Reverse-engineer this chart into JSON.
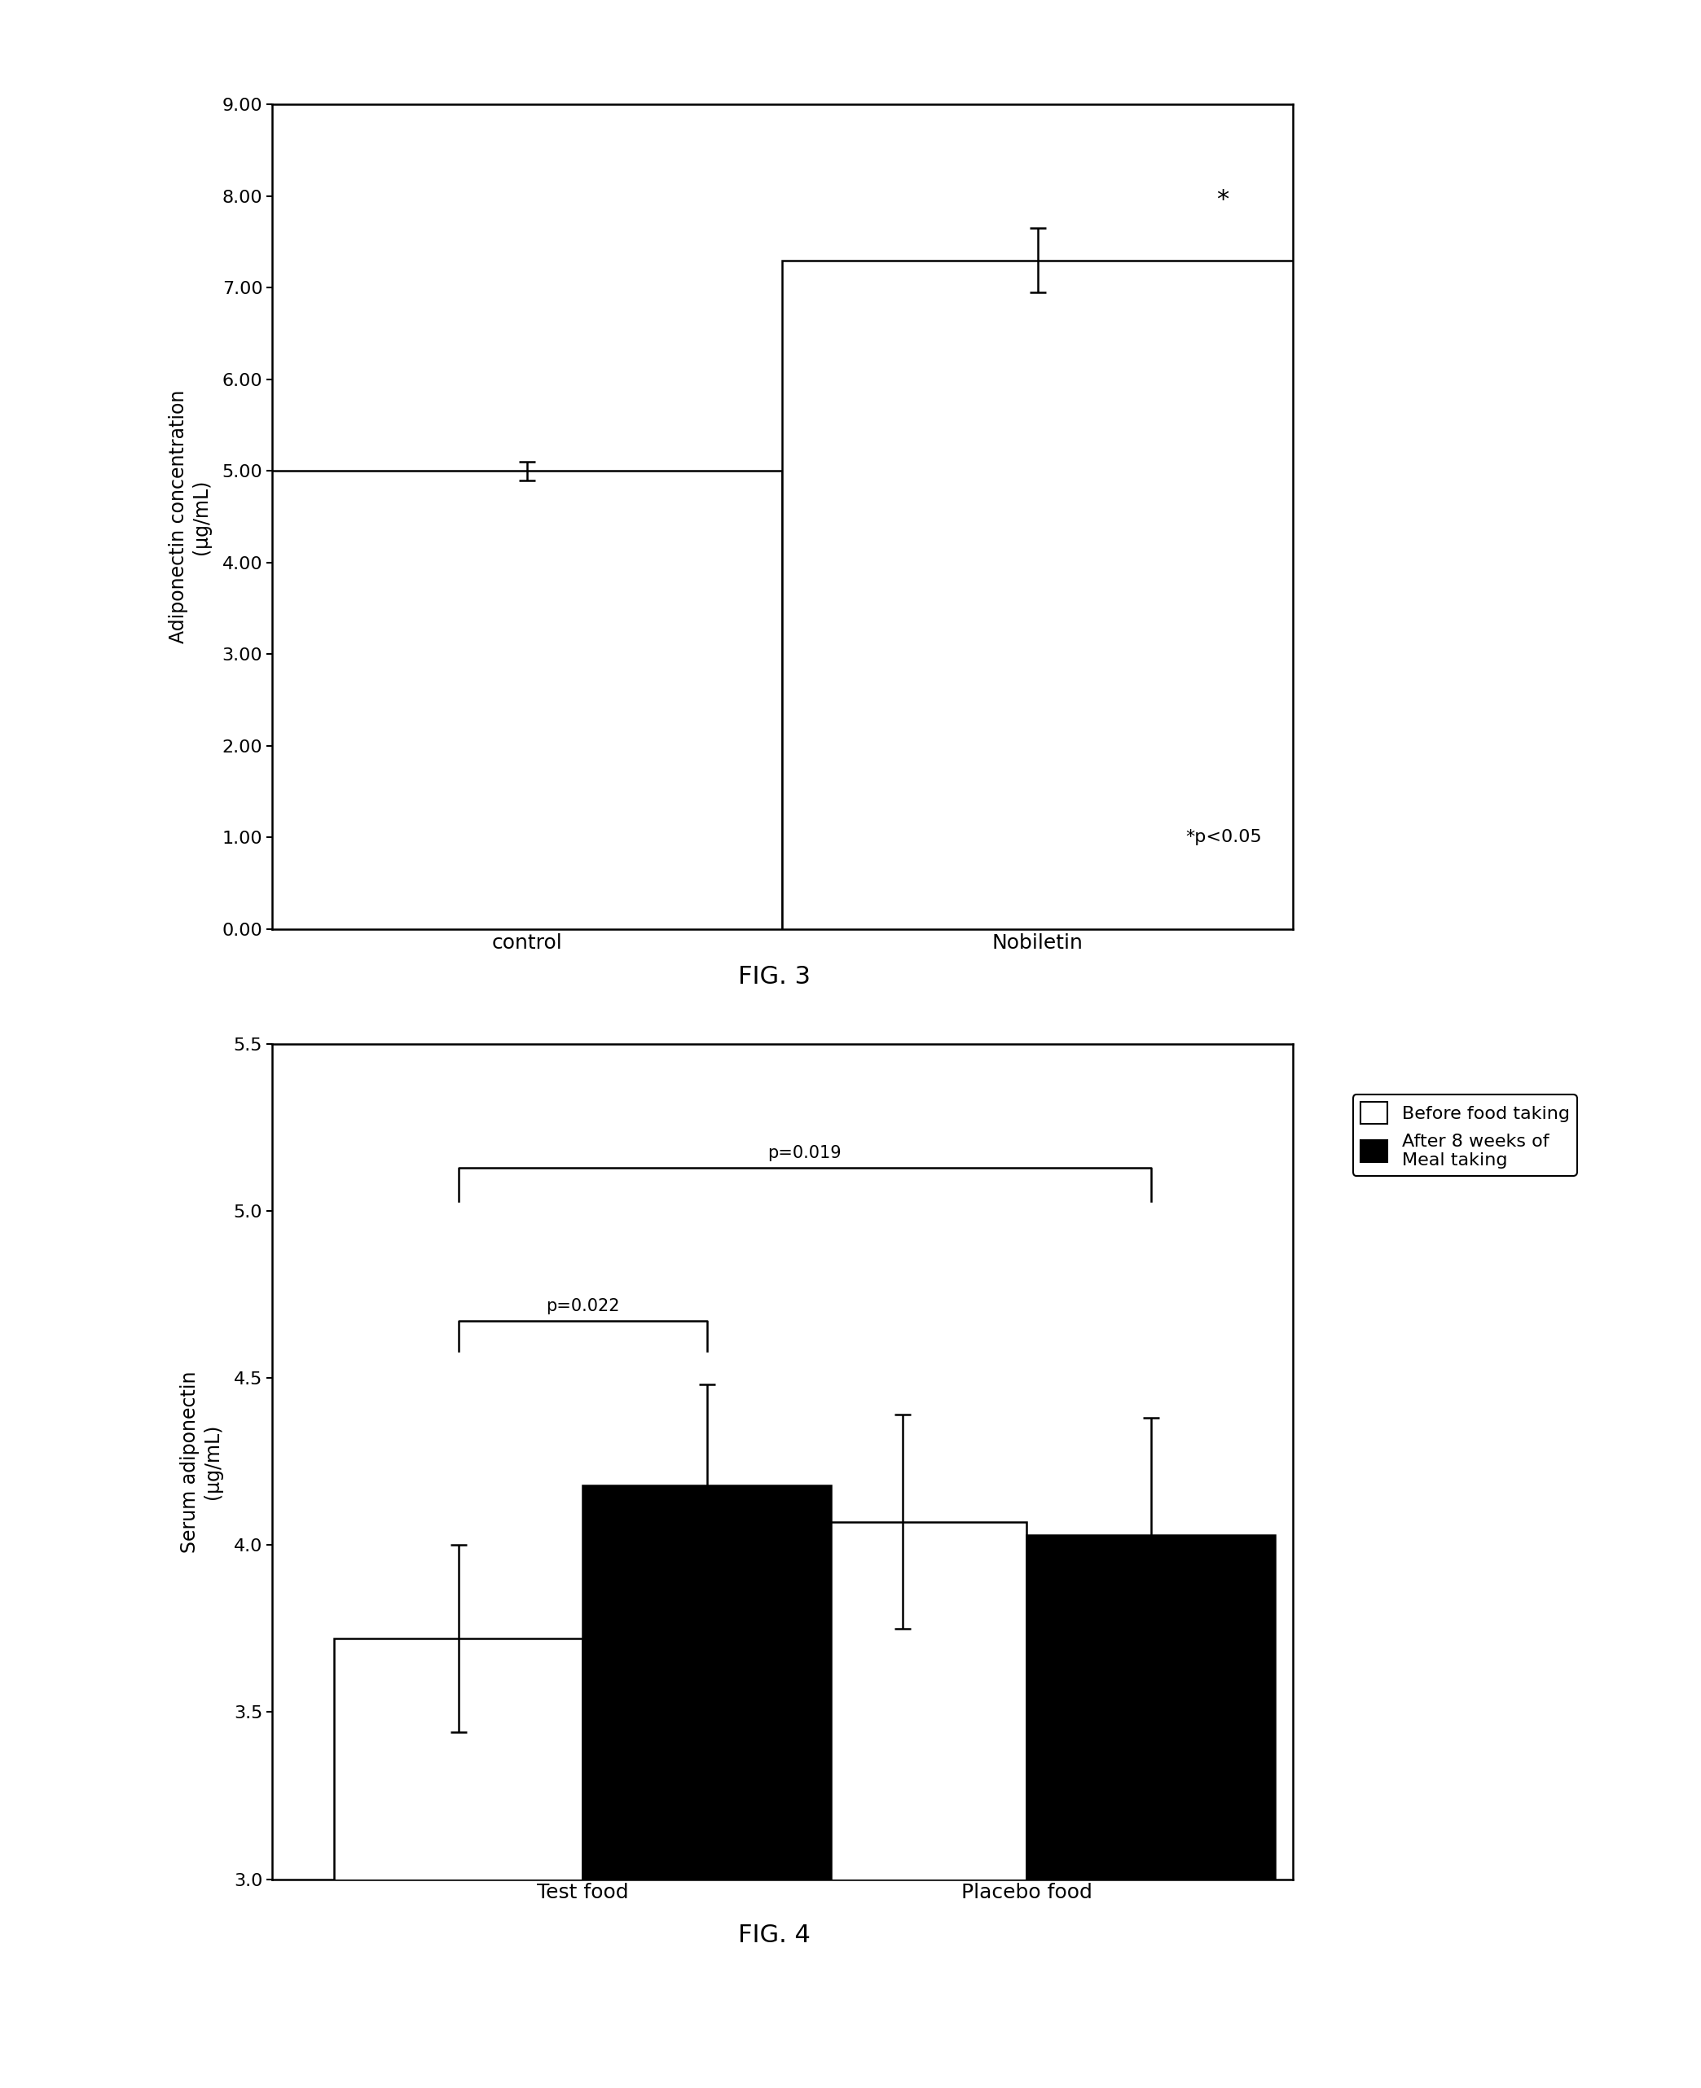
{
  "fig3": {
    "categories": [
      "control",
      "Nobiletin"
    ],
    "values": [
      5.0,
      7.3
    ],
    "errors": [
      0.1,
      0.35
    ],
    "ylim": [
      0,
      9.0
    ],
    "yticks": [
      0.0,
      1.0,
      2.0,
      3.0,
      4.0,
      5.0,
      6.0,
      7.0,
      8.0,
      9.0
    ],
    "ytick_labels": [
      "0.00",
      "1.00",
      "2.00",
      "3.00",
      "4.00",
      "5.00",
      "6.00",
      "7.00",
      "8.00",
      "9.00"
    ],
    "ylabel_line1": "Adiponectin concentration",
    "ylabel_line2": "(μg/mL)",
    "bar_color": "white",
    "bar_edgecolor": "black",
    "significance_label": "*",
    "significance_note": "*p<0.05",
    "fig_label": "FIG. 3",
    "bar_width": 0.5,
    "x_positions": [
      0.25,
      0.75
    ]
  },
  "fig4": {
    "group_labels": [
      "Test food",
      "Placebo food"
    ],
    "before_values": [
      3.72,
      4.07
    ],
    "after_values": [
      4.18,
      4.03
    ],
    "before_errors": [
      0.28,
      0.32
    ],
    "after_errors": [
      0.3,
      0.35
    ],
    "ylim": [
      3.0,
      5.5
    ],
    "yticks": [
      3.0,
      3.5,
      4.0,
      4.5,
      5.0,
      5.5
    ],
    "ytick_labels": [
      "3.0",
      "3.5",
      "4.0",
      "4.5",
      "5.0",
      "5.5"
    ],
    "ylabel_line1": "Serum adiponectin",
    "ylabel_line2": "(μg/mL)",
    "before_color": "white",
    "after_color": "black",
    "bar_edgecolor": "black",
    "legend_labels": [
      "Before food taking",
      "After 8 weeks of\nMeal taking"
    ],
    "p_within_label": "p=0.022",
    "p_between_label": "p=0.019",
    "fig_label": "FIG. 4",
    "bar_width": 0.28,
    "group_centers": [
      0.3,
      0.8
    ],
    "xlim": [
      -0.05,
      1.1
    ]
  },
  "background_color": "white",
  "text_color": "black"
}
